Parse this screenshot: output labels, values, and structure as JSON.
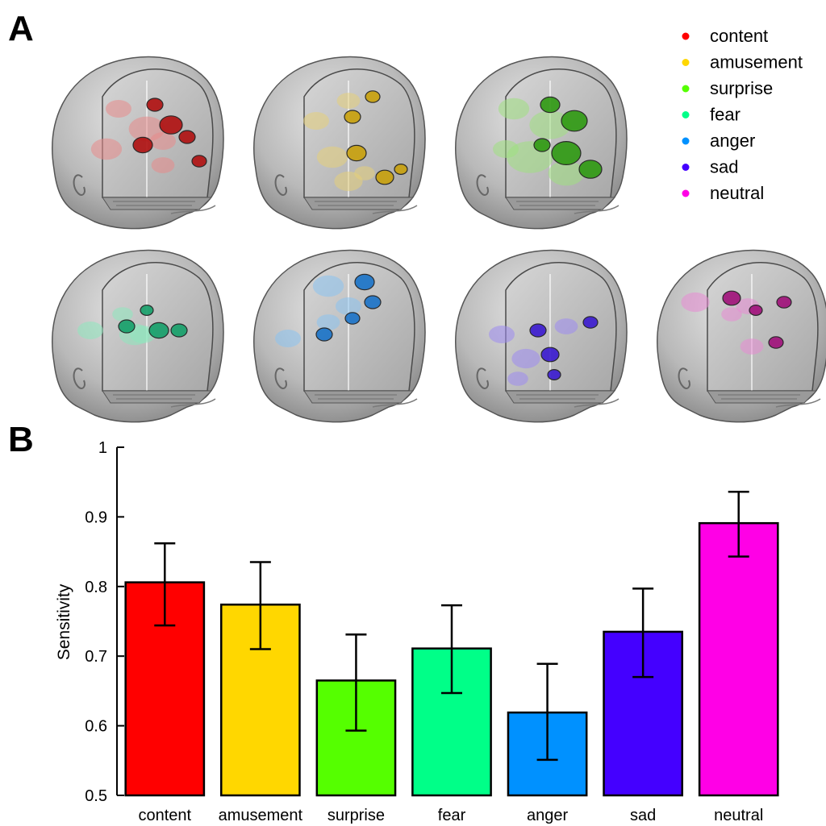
{
  "panels": {
    "a_label": "A",
    "b_label": "B"
  },
  "legend": {
    "placement": "top-right",
    "items": [
      {
        "label": "content",
        "color": "#ff0000"
      },
      {
        "label": "amusement",
        "color": "#ffd700"
      },
      {
        "label": "surprise",
        "color": "#55ff00"
      },
      {
        "label": "fear",
        "color": "#00ff88"
      },
      {
        "label": "anger",
        "color": "#0091ff"
      },
      {
        "label": "sad",
        "color": "#4400ff"
      },
      {
        "label": "neutral",
        "color": "#ff00e6"
      }
    ]
  },
  "brains": [
    {
      "emotion": "content",
      "color": "#b01010",
      "light": "#e88a8a"
    },
    {
      "emotion": "amusement",
      "color": "#c9a10c",
      "light": "#e6d07a"
    },
    {
      "emotion": "surprise",
      "color": "#2f9a12",
      "light": "#9fe07f"
    },
    {
      "emotion": "fear",
      "color": "#15a06a",
      "light": "#8ee8bd"
    },
    {
      "emotion": "anger",
      "color": "#1a73c8",
      "light": "#8ac2f0"
    },
    {
      "emotion": "sad",
      "color": "#3a1ad0",
      "light": "#9d8af0"
    },
    {
      "emotion": "neutral",
      "color": "#a0107a",
      "light": "#e88ad4"
    }
  ],
  "chart_data": {
    "type": "bar",
    "title": "",
    "xlabel": "",
    "ylabel": "Sensitivity",
    "ylim": [
      0.5,
      1.0
    ],
    "yticks": [
      "0.5",
      "0.6",
      "0.7",
      "0.8",
      "0.9",
      "1"
    ],
    "categories": [
      "content",
      "amusement",
      "surprise",
      "fear",
      "anger",
      "sad",
      "neutral"
    ],
    "values": [
      0.806,
      0.774,
      0.665,
      0.711,
      0.619,
      0.735,
      0.891
    ],
    "error_low": [
      0.744,
      0.71,
      0.593,
      0.647,
      0.551,
      0.67,
      0.843
    ],
    "error_high": [
      0.862,
      0.835,
      0.731,
      0.773,
      0.689,
      0.797,
      0.936
    ],
    "colors": [
      "#ff0000",
      "#ffd700",
      "#55ff00",
      "#00ff88",
      "#0091ff",
      "#4400ff",
      "#ff00e6"
    ],
    "grid": false,
    "legend": false
  }
}
